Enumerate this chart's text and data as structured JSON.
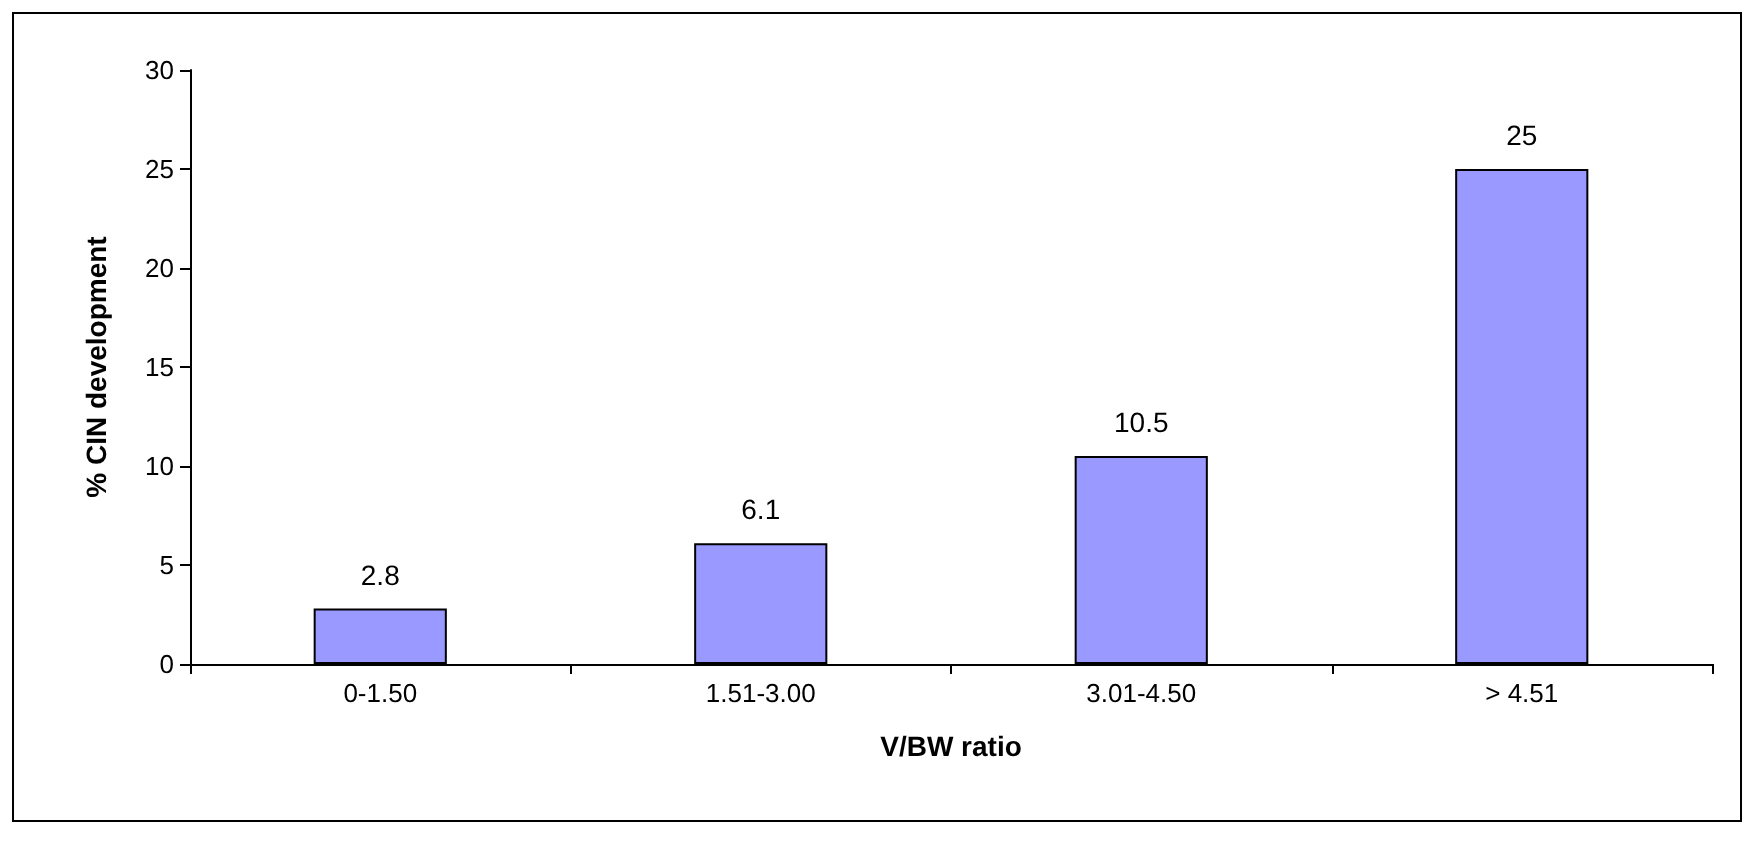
{
  "chart_data": {
    "type": "bar",
    "xlabel": "V/BW ratio",
    "ylabel": "% CIN development",
    "categories": [
      "0-1.50",
      "1.51-3.00",
      "3.01-4.50",
      "> 4.51"
    ],
    "values": [
      2.8,
      6.1,
      10.5,
      25
    ],
    "color": "#9999ff",
    "ylim": [
      0,
      30
    ],
    "yticks": [
      0,
      5,
      10,
      15,
      20,
      25,
      30
    ],
    "grid": false,
    "data_labels": true
  }
}
